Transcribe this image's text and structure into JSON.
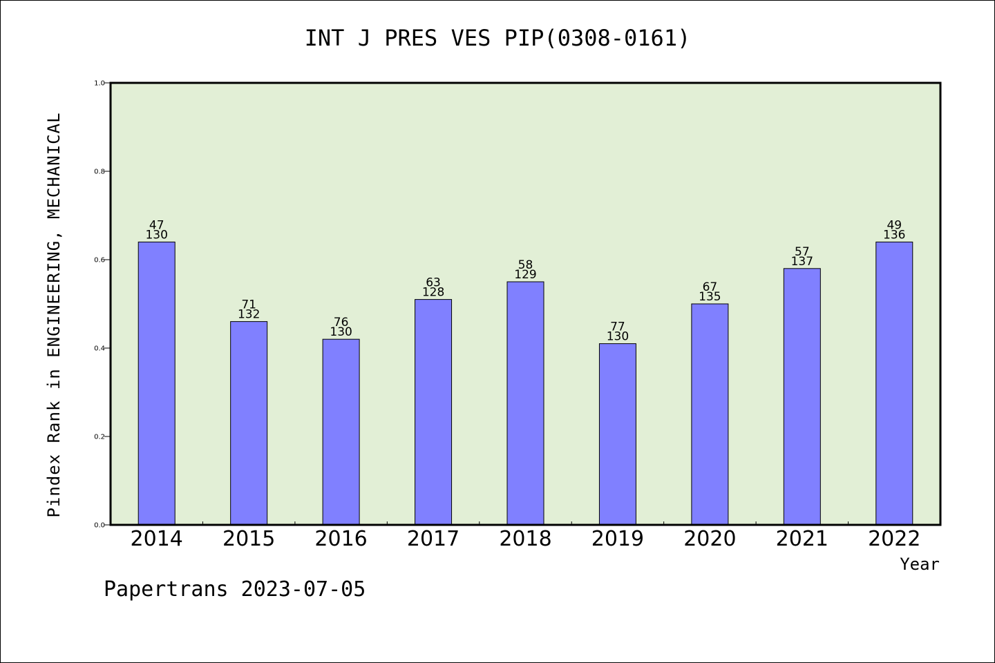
{
  "chart_data": {
    "type": "bar",
    "title": "INT J PRES VES PIP(0308-0161)",
    "xlabel": "Year",
    "ylabel": "Pindex Rank in ENGINEERING, MECHANICAL",
    "categories": [
      "2014",
      "2015",
      "2016",
      "2017",
      "2018",
      "2019",
      "2020",
      "2021",
      "2022"
    ],
    "values": [
      0.64,
      0.46,
      0.42,
      0.51,
      0.55,
      0.41,
      0.5,
      0.58,
      0.64
    ],
    "label_top": [
      "47",
      "71",
      "76",
      "63",
      "58",
      "77",
      "67",
      "57",
      "49"
    ],
    "label_bottom": [
      "130",
      "132",
      "130",
      "128",
      "129",
      "130",
      "135",
      "137",
      "136"
    ],
    "ylim": [
      0,
      1.0
    ],
    "yticks": [
      "0.0",
      "0.2",
      "0.4",
      "0.6",
      "0.8",
      "1.0"
    ],
    "grid": false,
    "plot_background": "#e2efd6",
    "bar_color": "#8080ff"
  },
  "footer": "Papertrans 2023-07-05"
}
